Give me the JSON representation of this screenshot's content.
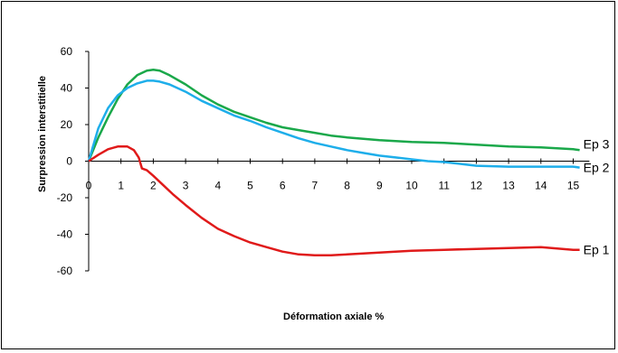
{
  "chart_data": {
    "type": "line",
    "title": "",
    "xlabel": "Déformation axiale %",
    "ylabel": "Surpression interstitielle",
    "xlim": [
      0,
      15.5
    ],
    "ylim": [
      -60,
      60
    ],
    "x_ticks": [
      "0",
      "1",
      "2",
      "3",
      "4",
      "5",
      "6",
      "7",
      "8",
      "9",
      "10",
      "11",
      "12",
      "13",
      "14",
      "15"
    ],
    "y_ticks": [
      "60",
      "40",
      "20",
      "0",
      "-20",
      "-40",
      "-60"
    ],
    "grid": false,
    "legend": "labels at line ends",
    "series": [
      {
        "name": "Ep 3",
        "color": "#1aa84a",
        "x": [
          0,
          0.3,
          0.6,
          0.9,
          1.2,
          1.5,
          1.8,
          2.0,
          2.2,
          2.5,
          3.0,
          3.5,
          4.0,
          4.5,
          5.0,
          5.5,
          6.0,
          6.5,
          7.0,
          7.5,
          8.0,
          9.0,
          10.0,
          11.0,
          11.5,
          12.0,
          13.0,
          14.0,
          15.0,
          15.2
        ],
        "y": [
          0,
          13,
          24,
          34,
          42,
          47,
          49.5,
          50,
          49.5,
          47,
          42,
          36,
          31,
          27,
          24,
          21,
          18.5,
          17,
          15.5,
          14,
          13,
          11.5,
          10.5,
          10,
          9.5,
          9,
          8,
          7.5,
          6.5,
          6
        ]
      },
      {
        "name": "Ep 2",
        "color": "#1eaeea",
        "x": [
          0,
          0.3,
          0.6,
          0.9,
          1.2,
          1.5,
          1.8,
          2.0,
          2.2,
          2.5,
          3.0,
          3.5,
          4.0,
          4.5,
          5.0,
          5.5,
          6.0,
          6.5,
          7.0,
          7.5,
          8.0,
          8.5,
          9.0,
          9.5,
          10.0,
          10.5,
          11.0,
          11.5,
          12.0,
          13.0,
          14.0,
          15.0,
          15.2
        ],
        "y": [
          0,
          18,
          29,
          36,
          40,
          42.5,
          44,
          44,
          43.5,
          42,
          38,
          33,
          29,
          25,
          22,
          18.5,
          15.5,
          12.5,
          10,
          8,
          6,
          4.5,
          3,
          2,
          1,
          0,
          -0.5,
          -1.5,
          -2.5,
          -3,
          -3,
          -3,
          -3.5
        ]
      },
      {
        "name": "Ep 1",
        "color": "#e01a1a",
        "x": [
          0,
          0.3,
          0.6,
          0.9,
          1.2,
          1.4,
          1.55,
          1.65,
          1.8,
          2.0,
          2.3,
          2.6,
          3.0,
          3.5,
          4.0,
          4.5,
          5.0,
          5.5,
          6.0,
          6.5,
          7.0,
          7.5,
          8.0,
          9.0,
          10.0,
          11.0,
          12.0,
          13.0,
          14.0,
          15.0,
          15.2
        ],
        "y": [
          0,
          3.5,
          6.5,
          8,
          8,
          6,
          2,
          -4,
          -5,
          -8,
          -13,
          -18,
          -24,
          -31,
          -37,
          -41,
          -44.5,
          -47,
          -49.5,
          -51,
          -51.5,
          -51.5,
          -51,
          -50,
          -49,
          -48.5,
          -48,
          -47.5,
          -47,
          -48.5,
          -48.5
        ]
      }
    ]
  }
}
